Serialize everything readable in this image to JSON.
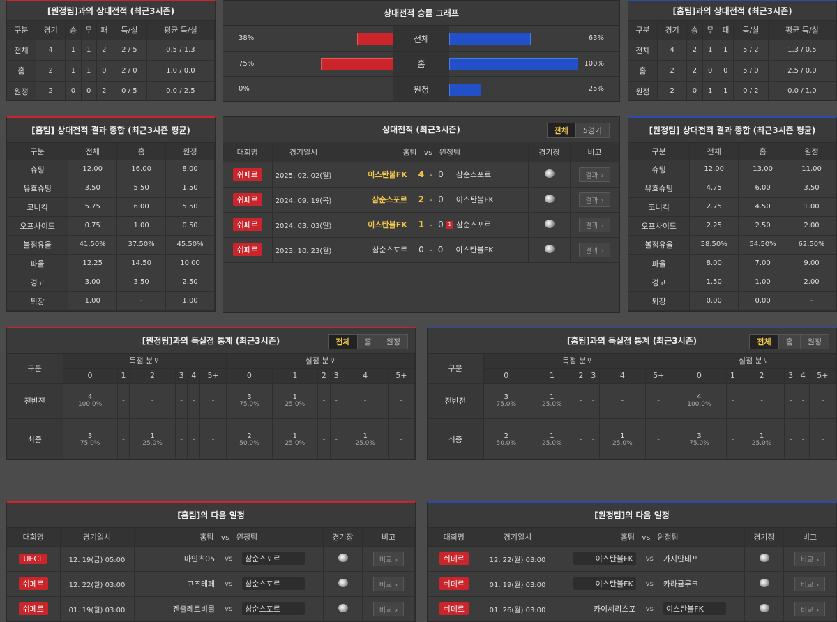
{
  "h2h_away_summary": {
    "title": "[원정팀]과의 상대전적 (최근3시즌)",
    "headers": [
      "구분",
      "경기",
      "승",
      "무",
      "패",
      "득/실",
      "평균 득/실"
    ],
    "rows": [
      [
        "전체",
        "4",
        "1",
        "1",
        "2",
        "2 / 5",
        "0.5 / 1.3"
      ],
      [
        "홈",
        "2",
        "1",
        "1",
        "0",
        "2 / 0",
        "1.0 / 0.0"
      ],
      [
        "원정",
        "2",
        "0",
        "0",
        "2",
        "0 / 5",
        "0.0 / 2.5"
      ]
    ]
  },
  "h2h_graph": {
    "title": "상대전적 승률 그래프",
    "rows": [
      {
        "label": "전체",
        "left": "38%",
        "right": "63%",
        "left_val": 0.38,
        "right_val": 0.63
      },
      {
        "label": "홈",
        "left": "75%",
        "right": "100%",
        "left_val": 0.75,
        "right_val": 1.0
      },
      {
        "label": "원정",
        "left": "0%",
        "right": "25%",
        "left_val": 0,
        "right_val": 0.25
      }
    ]
  },
  "h2h_home_summary": {
    "title": "[홈팀]과의 상대전적 (최근3시즌)",
    "headers": [
      "구분",
      "경기",
      "승",
      "무",
      "패",
      "득/실",
      "평균 득/실"
    ],
    "rows": [
      [
        "전체",
        "4",
        "2",
        "1",
        "1",
        "5 / 2",
        "1.3 / 0.5"
      ],
      [
        "홈",
        "2",
        "2",
        "0",
        "0",
        "5 / 0",
        "2.5 / 0.0"
      ],
      [
        "원정",
        "2",
        "0",
        "1",
        "1",
        "0 / 2",
        "0.0 / 1.0"
      ]
    ]
  },
  "home_stats": {
    "title": "[홈팀] 상대전적 결과 종합 (최근3시즌 평균)",
    "headers": [
      "구분",
      "전체",
      "홈",
      "원정"
    ],
    "rows": [
      [
        "슈팅",
        "12.00",
        "16.00",
        "8.00"
      ],
      [
        "유효슈팅",
        "3.50",
        "5.50",
        "1.50"
      ],
      [
        "코너킥",
        "5.75",
        "6.00",
        "5.50"
      ],
      [
        "오프사이드",
        "0.75",
        "1.00",
        "0.50"
      ],
      [
        "볼점유율",
        "41.50%",
        "37.50%",
        "45.50%"
      ],
      [
        "파울",
        "12.25",
        "14.50",
        "10.00"
      ],
      [
        "경고",
        "3.00",
        "3.50",
        "2.50"
      ],
      [
        "퇴장",
        "1.00",
        "-",
        "1.00"
      ]
    ]
  },
  "h2h_matches": {
    "title": "상대전적 (최근3시즌)",
    "tabs": [
      "전체",
      "5경기"
    ],
    "headers": {
      "league": "대회명",
      "date": "경기일시",
      "home": "홈팀",
      "vs": "vs",
      "away": "원정팀",
      "stadium": "경기장",
      "note": "비고"
    },
    "rows": [
      {
        "league": "쉬페르",
        "date": "2025. 02. 02(일)",
        "home": "이스탄불FK",
        "hs": "4",
        "sep": "-",
        "as": "0",
        "away": "삼순스포르",
        "home_win": true,
        "card": "",
        "btn": "결과"
      },
      {
        "league": "쉬페르",
        "date": "2024. 09. 19(목)",
        "home": "삼순스포르",
        "hs": "2",
        "sep": "-",
        "as": "0",
        "away": "이스탄불FK",
        "home_win": true,
        "card": "",
        "btn": "결과"
      },
      {
        "league": "쉬페르",
        "date": "2024. 03. 03(일)",
        "home": "이스탄불FK",
        "hs": "1",
        "sep": "-",
        "as": "0",
        "away": "삼순스포르",
        "home_win": true,
        "card": "1",
        "btn": "결과"
      },
      {
        "league": "쉬페르",
        "date": "2023. 10. 23(월)",
        "home": "삼순스포르",
        "hs": "0",
        "sep": "-",
        "as": "0",
        "away": "이스탄불FK",
        "home_win": false,
        "card": "",
        "btn": "결과"
      }
    ]
  },
  "away_stats": {
    "title": "[원정팀] 상대전적 결과 종합 (최근3시즌 평균)",
    "headers": [
      "구분",
      "전체",
      "홈",
      "원정"
    ],
    "rows": [
      [
        "슈팅",
        "12.00",
        "13.00",
        "11.00"
      ],
      [
        "유효슈팅",
        "4.75",
        "6.00",
        "3.50"
      ],
      [
        "코너킥",
        "2.75",
        "4.50",
        "1.00"
      ],
      [
        "오프사이드",
        "2.25",
        "2.50",
        "2.00"
      ],
      [
        "볼점유율",
        "58.50%",
        "54.50%",
        "62.50%"
      ],
      [
        "파울",
        "8.00",
        "7.00",
        "9.00"
      ],
      [
        "경고",
        "1.50",
        "1.00",
        "2.00"
      ],
      [
        "퇴장",
        "0.00",
        "0.00",
        "-"
      ]
    ]
  },
  "goals_vs_away": {
    "title": "[원정팀]과의 득실점 통계 (최근3시즌)",
    "tabs": [
      "전체",
      "홈",
      "원정"
    ],
    "group_col": "구분",
    "scored": "득점 분포",
    "conceded": "실점 분포",
    "cols": [
      "0",
      "1",
      "2",
      "3",
      "4",
      "5+"
    ],
    "rows": [
      {
        "label": "전반전",
        "cells": [
          [
            "4",
            "100.0%"
          ],
          [
            "-",
            ""
          ],
          [
            "-",
            ""
          ],
          [
            "-",
            ""
          ],
          [
            "-",
            ""
          ],
          [
            "-",
            ""
          ],
          [
            "3",
            "75.0%"
          ],
          [
            "1",
            "25.0%"
          ],
          [
            "-",
            ""
          ],
          [
            "-",
            ""
          ],
          [
            "-",
            ""
          ],
          [
            "-",
            ""
          ]
        ]
      },
      {
        "label": "최종",
        "cells": [
          [
            "3",
            "75.0%"
          ],
          [
            "-",
            ""
          ],
          [
            "1",
            "25.0%"
          ],
          [
            "-",
            ""
          ],
          [
            "-",
            ""
          ],
          [
            "-",
            ""
          ],
          [
            "2",
            "50.0%"
          ],
          [
            "1",
            "25.0%"
          ],
          [
            "-",
            ""
          ],
          [
            "-",
            ""
          ],
          [
            "1",
            "25.0%"
          ],
          [
            "-",
            ""
          ]
        ]
      }
    ]
  },
  "goals_vs_home": {
    "title": "[홈팀]과의 득실점 통계 (최근3시즌)",
    "tabs": [
      "전체",
      "홈",
      "원정"
    ],
    "group_col": "구분",
    "scored": "득점 분포",
    "conceded": "실점 분포",
    "cols": [
      "0",
      "1",
      "2",
      "3",
      "4",
      "5+"
    ],
    "rows": [
      {
        "label": "전반전",
        "cells": [
          [
            "3",
            "75.0%"
          ],
          [
            "1",
            "25.0%"
          ],
          [
            "-",
            ""
          ],
          [
            "-",
            ""
          ],
          [
            "-",
            ""
          ],
          [
            "-",
            ""
          ],
          [
            "4",
            "100.0%"
          ],
          [
            "-",
            ""
          ],
          [
            "-",
            ""
          ],
          [
            "-",
            ""
          ],
          [
            "-",
            ""
          ],
          [
            "-",
            ""
          ]
        ]
      },
      {
        "label": "최종",
        "cells": [
          [
            "2",
            "50.0%"
          ],
          [
            "1",
            "25.0%"
          ],
          [
            "-",
            ""
          ],
          [
            "-",
            ""
          ],
          [
            "1",
            "25.0%"
          ],
          [
            "-",
            ""
          ],
          [
            "3",
            "75.0%"
          ],
          [
            "-",
            ""
          ],
          [
            "1",
            "25.0%"
          ],
          [
            "-",
            ""
          ],
          [
            "-",
            ""
          ],
          [
            "-",
            ""
          ]
        ]
      }
    ]
  },
  "home_next": {
    "title": "[홈팀]의 다음 일정",
    "headers": {
      "league": "대회명",
      "date": "경기일시",
      "home": "홈팀",
      "vs": "vs",
      "away": "원정팀",
      "stadium": "경기장",
      "note": "비고"
    },
    "rows": [
      {
        "league": "UECL",
        "date": "12. 19(금) 05:00",
        "home": "마인츠05",
        "away": "삼순스포르",
        "btn": "비교",
        "tag": "away"
      },
      {
        "league": "쉬페르",
        "date": "12. 22(월) 03:00",
        "home": "고즈테페",
        "away": "삼순스포르",
        "btn": "비교",
        "tag": "away"
      },
      {
        "league": "쉬페르",
        "date": "01. 19(월) 03:00",
        "home": "겐츨레르비를",
        "away": "삼순스포르",
        "btn": "비교",
        "tag": "away"
      }
    ]
  },
  "away_next": {
    "title": "[원정팀]의 다음 일정",
    "headers": {
      "league": "대회명",
      "date": "경기일시",
      "home": "홈팀",
      "vs": "vs",
      "away": "원정팀",
      "stadium": "경기장",
      "note": "비고"
    },
    "rows": [
      {
        "league": "쉬페르",
        "date": "12. 22(월) 03:00",
        "home": "이스탄불FK",
        "away": "가지안테프",
        "btn": "비교",
        "tag": "home"
      },
      {
        "league": "쉬페르",
        "date": "01. 19(월) 03:00",
        "home": "이스탄불FK",
        "away": "카라귬루크",
        "btn": "비교",
        "tag": "home"
      },
      {
        "league": "쉬페르",
        "date": "01. 26(월) 03:00",
        "home": "카이세리스포",
        "away": "이스탄불FK",
        "btn": "비교",
        "tag": "away"
      }
    ]
  }
}
